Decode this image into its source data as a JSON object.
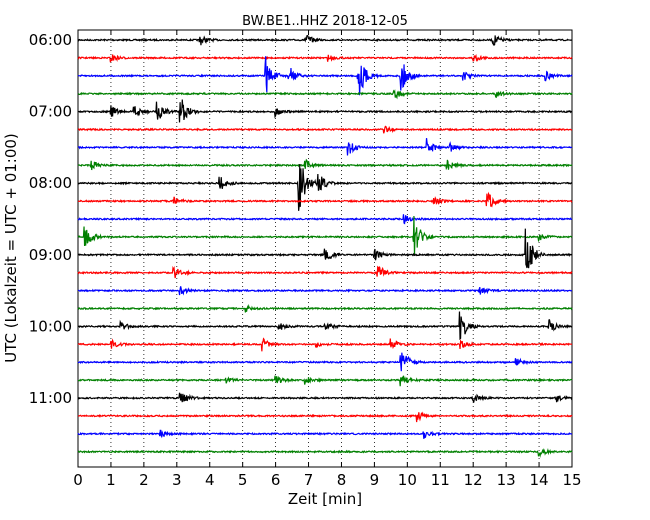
{
  "chart_data": {
    "type": "line",
    "title": "BW.BE1..HHZ 2018-12-05",
    "xlabel": "Zeit  [min]",
    "ylabel": "UTC (Lokalzeit = UTC + 01:00)",
    "xlim": [
      0,
      15
    ],
    "x_ticks": [
      "0",
      "1",
      "2",
      "3",
      "4",
      "5",
      "6",
      "7",
      "8",
      "9",
      "10",
      "11",
      "12",
      "13",
      "14",
      "15"
    ],
    "y_ticks": [
      "06:00",
      "07:00",
      "08:00",
      "09:00",
      "10:00",
      "11:00"
    ],
    "grid": "vertical dotted",
    "trace_interval_min": 15,
    "colors": [
      "#000000",
      "#ff0000",
      "#0000ff",
      "#008000"
    ],
    "series": [
      {
        "start": "06:00",
        "color": "#000000",
        "events": [
          [
            3.7,
            0.25
          ],
          [
            6.9,
            0.3
          ],
          [
            12.6,
            0.3
          ]
        ]
      },
      {
        "start": "06:15",
        "color": "#ff0000",
        "events": [
          [
            1.0,
            0.2
          ],
          [
            7.6,
            0.15
          ],
          [
            12.0,
            0.2
          ]
        ]
      },
      {
        "start": "06:30",
        "color": "#0000ff",
        "events": [
          [
            5.7,
            0.9
          ],
          [
            6.4,
            0.5
          ],
          [
            8.5,
            1.2
          ],
          [
            9.8,
            0.9
          ],
          [
            11.7,
            0.2
          ],
          [
            14.2,
            0.2
          ]
        ]
      },
      {
        "start": "06:45",
        "color": "#008000",
        "events": [
          [
            9.6,
            0.25
          ],
          [
            12.7,
            0.15
          ]
        ]
      },
      {
        "start": "07:00",
        "color": "#000000",
        "events": [
          [
            1.0,
            0.3
          ],
          [
            1.7,
            0.4
          ],
          [
            2.4,
            0.5
          ],
          [
            3.1,
            0.8
          ],
          [
            6.0,
            0.2
          ]
        ]
      },
      {
        "start": "07:15",
        "color": "#ff0000",
        "events": [
          [
            9.3,
            0.15
          ]
        ]
      },
      {
        "start": "07:30",
        "color": "#0000ff",
        "events": [
          [
            8.2,
            0.4
          ],
          [
            10.6,
            0.4
          ],
          [
            11.3,
            0.2
          ]
        ]
      },
      {
        "start": "07:45",
        "color": "#008000",
        "events": [
          [
            0.4,
            0.3
          ],
          [
            6.9,
            0.3
          ],
          [
            11.2,
            0.3
          ]
        ]
      },
      {
        "start": "08:00",
        "color": "#000000",
        "events": [
          [
            4.3,
            0.4
          ],
          [
            6.7,
            1.5
          ],
          [
            7.3,
            0.5
          ]
        ]
      },
      {
        "start": "08:15",
        "color": "#ff0000",
        "events": [
          [
            2.9,
            0.2
          ],
          [
            10.8,
            0.2
          ],
          [
            12.4,
            0.6
          ]
        ]
      },
      {
        "start": "08:30",
        "color": "#0000ff",
        "events": [
          [
            9.9,
            0.25
          ]
        ]
      },
      {
        "start": "08:45",
        "color": "#008000",
        "events": [
          [
            0.2,
            0.6
          ],
          [
            10.2,
            1.0
          ],
          [
            14.0,
            0.2
          ]
        ]
      },
      {
        "start": "09:00",
        "color": "#000000",
        "events": [
          [
            7.5,
            0.4
          ],
          [
            9.0,
            0.3
          ],
          [
            13.6,
            1.3
          ]
        ]
      },
      {
        "start": "09:15",
        "color": "#ff0000",
        "events": [
          [
            2.9,
            0.3
          ],
          [
            9.1,
            0.4
          ]
        ]
      },
      {
        "start": "09:30",
        "color": "#0000ff",
        "events": [
          [
            3.1,
            0.2
          ],
          [
            12.2,
            0.2
          ]
        ]
      },
      {
        "start": "09:45",
        "color": "#008000",
        "events": [
          [
            5.1,
            0.15
          ]
        ]
      },
      {
        "start": "10:00",
        "color": "#000000",
        "events": [
          [
            1.3,
            0.2
          ],
          [
            6.1,
            0.2
          ],
          [
            7.5,
            0.2
          ],
          [
            11.6,
            0.8
          ],
          [
            14.3,
            0.3
          ]
        ]
      },
      {
        "start": "10:15",
        "color": "#ff0000",
        "events": [
          [
            1.0,
            0.2
          ],
          [
            5.6,
            0.3
          ],
          [
            7.2,
            0.2
          ],
          [
            9.5,
            0.3
          ],
          [
            11.6,
            0.2
          ]
        ]
      },
      {
        "start": "10:30",
        "color": "#0000ff",
        "events": [
          [
            9.8,
            0.8
          ],
          [
            13.3,
            0.2
          ]
        ]
      },
      {
        "start": "10:45",
        "color": "#008000",
        "events": [
          [
            4.5,
            0.15
          ],
          [
            6.0,
            0.2
          ],
          [
            6.9,
            0.2
          ],
          [
            9.8,
            0.3
          ]
        ]
      },
      {
        "start": "11:00",
        "color": "#000000",
        "events": [
          [
            3.1,
            0.4
          ],
          [
            12.0,
            0.2
          ],
          [
            14.5,
            0.2
          ]
        ]
      },
      {
        "start": "11:15",
        "color": "#ff0000",
        "events": [
          [
            10.3,
            0.25
          ]
        ]
      },
      {
        "start": "11:30",
        "color": "#0000ff",
        "events": [
          [
            2.5,
            0.15
          ],
          [
            10.5,
            0.2
          ]
        ]
      },
      {
        "start": "11:45",
        "color": "#008000",
        "events": [
          [
            14.0,
            0.2
          ]
        ]
      }
    ]
  }
}
